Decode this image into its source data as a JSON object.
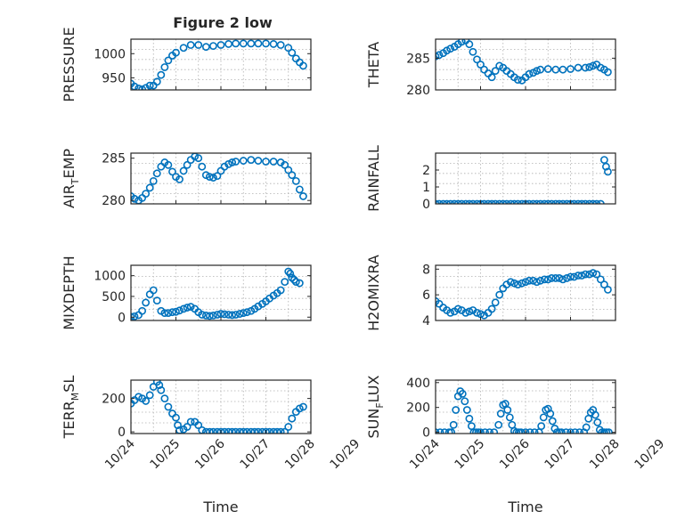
{
  "figure_title": "Figure 2 low",
  "colors": {
    "marker": "#0072bd",
    "axis": "#262626",
    "grid": "#b0b0b0"
  },
  "chart_data": [
    {
      "type": "scatter",
      "ylabel_main": "PRESSURE",
      "ylabel_sub": "",
      "ylabel_tail": "",
      "ylim": [
        925,
        1030
      ],
      "yticks": [
        950,
        1000
      ],
      "ytick_labels": [
        "950",
        "1000"
      ],
      "xlim": [
        0,
        4
      ],
      "show_xticks": false,
      "xlabel": "",
      "grid": true,
      "x": [
        0.0,
        0.08,
        0.17,
        0.25,
        0.33,
        0.42,
        0.5,
        0.58,
        0.67,
        0.75,
        0.83,
        0.92,
        1.0,
        1.17,
        1.33,
        1.5,
        1.67,
        1.83,
        2.0,
        2.17,
        2.33,
        2.5,
        2.67,
        2.83,
        3.0,
        3.17,
        3.33,
        3.5,
        3.58,
        3.67,
        3.75,
        3.83
      ],
      "y": [
        938,
        932,
        928,
        926,
        929,
        934,
        934,
        942,
        956,
        972,
        986,
        996,
        1002,
        1012,
        1018,
        1018,
        1014,
        1016,
        1018,
        1020,
        1021,
        1021,
        1021,
        1021,
        1021,
        1020,
        1018,
        1012,
        1002,
        990,
        982,
        975
      ]
    },
    {
      "type": "scatter",
      "ylabel_main": "THETA",
      "ylabel_sub": "",
      "ylabel_tail": "",
      "ylim": [
        280,
        288
      ],
      "yticks": [
        280,
        285
      ],
      "ytick_labels": [
        "280",
        "285"
      ],
      "xlim": [
        0,
        4
      ],
      "show_xticks": false,
      "xlabel": "",
      "grid": true,
      "x": [
        0.0,
        0.08,
        0.17,
        0.25,
        0.33,
        0.42,
        0.5,
        0.58,
        0.67,
        0.75,
        0.83,
        0.92,
        1.0,
        1.08,
        1.17,
        1.25,
        1.33,
        1.42,
        1.5,
        1.58,
        1.67,
        1.75,
        1.83,
        1.92,
        2.0,
        2.08,
        2.17,
        2.25,
        2.33,
        2.5,
        2.67,
        2.83,
        3.0,
        3.17,
        3.33,
        3.42,
        3.5,
        3.58,
        3.67,
        3.75,
        3.83
      ],
      "y": [
        285.3,
        285.5,
        285.8,
        286.2,
        286.5,
        286.8,
        287.2,
        287.6,
        287.8,
        287.2,
        286.0,
        284.8,
        284.0,
        283.2,
        282.6,
        282.0,
        283.0,
        283.8,
        283.5,
        283.0,
        282.5,
        282.0,
        281.6,
        281.5,
        282.0,
        282.5,
        282.7,
        283.0,
        283.2,
        283.3,
        283.2,
        283.2,
        283.3,
        283.5,
        283.5,
        283.6,
        283.8,
        284.0,
        283.5,
        283.2,
        282.8
      ]
    },
    {
      "type": "scatter",
      "ylabel_main": "AIR",
      "ylabel_sub": "T",
      "ylabel_tail": "EMP",
      "ylim": [
        279.6,
        285.6
      ],
      "yticks": [
        280,
        285
      ],
      "ytick_labels": [
        "280",
        "285"
      ],
      "xlim": [
        0,
        4
      ],
      "show_xticks": false,
      "xlabel": "",
      "grid": true,
      "x": [
        0.0,
        0.08,
        0.17,
        0.25,
        0.33,
        0.42,
        0.5,
        0.58,
        0.67,
        0.75,
        0.83,
        0.92,
        1.0,
        1.08,
        1.17,
        1.25,
        1.33,
        1.42,
        1.5,
        1.58,
        1.67,
        1.75,
        1.83,
        1.92,
        2.0,
        2.08,
        2.17,
        2.25,
        2.33,
        2.5,
        2.67,
        2.83,
        3.0,
        3.17,
        3.33,
        3.42,
        3.5,
        3.58,
        3.67,
        3.75,
        3.83
      ],
      "y": [
        280.5,
        280.2,
        280.0,
        280.3,
        280.8,
        281.5,
        282.3,
        283.2,
        284.0,
        284.5,
        284.2,
        283.4,
        282.8,
        282.5,
        283.5,
        284.2,
        284.8,
        285.2,
        285.0,
        284.0,
        283.0,
        282.8,
        282.7,
        282.9,
        283.5,
        284.0,
        284.3,
        284.5,
        284.6,
        284.7,
        284.8,
        284.7,
        284.6,
        284.6,
        284.5,
        284.2,
        283.6,
        283.0,
        282.3,
        281.3,
        280.5
      ]
    },
    {
      "type": "scatter",
      "ylabel_main": "RAINFALL",
      "ylabel_sub": "",
      "ylabel_tail": "",
      "ylim": [
        0,
        3
      ],
      "yticks": [
        0,
        1,
        2
      ],
      "ytick_labels": [
        "0",
        "1",
        "2"
      ],
      "xlim": [
        0,
        4
      ],
      "show_xticks": false,
      "xlabel": "",
      "grid": true,
      "x": [
        0.0,
        0.08,
        0.17,
        0.25,
        0.33,
        0.42,
        0.5,
        0.58,
        0.67,
        0.75,
        0.83,
        0.92,
        1.0,
        1.08,
        1.17,
        1.25,
        1.33,
        1.42,
        1.5,
        1.58,
        1.67,
        1.75,
        1.83,
        1.92,
        2.0,
        2.08,
        2.17,
        2.25,
        2.33,
        2.42,
        2.5,
        2.58,
        2.67,
        2.75,
        2.83,
        2.92,
        3.0,
        3.08,
        3.17,
        3.25,
        3.33,
        3.42,
        3.5,
        3.58,
        3.67,
        3.75,
        3.79,
        3.83
      ],
      "y": [
        0,
        0,
        0,
        0,
        0,
        0,
        0,
        0,
        0,
        0,
        0,
        0,
        0,
        0,
        0,
        0,
        0,
        0,
        0,
        0,
        0,
        0,
        0,
        0,
        0,
        0,
        0,
        0,
        0,
        0,
        0,
        0,
        0,
        0,
        0,
        0,
        0,
        0,
        0,
        0,
        0,
        0,
        0,
        0,
        0,
        2.6,
        2.2,
        1.9
      ]
    },
    {
      "type": "scatter",
      "ylabel_main": "MIXDEPTH",
      "ylabel_sub": "",
      "ylabel_tail": "",
      "ylim": [
        -80,
        1250
      ],
      "yticks": [
        0,
        500,
        1000
      ],
      "ytick_labels": [
        "0",
        "500",
        "1000"
      ],
      "xlim": [
        0,
        4
      ],
      "show_xticks": false,
      "xlabel": "",
      "grid": true,
      "x": [
        0.0,
        0.08,
        0.17,
        0.25,
        0.33,
        0.42,
        0.5,
        0.58,
        0.67,
        0.75,
        0.83,
        0.92,
        1.0,
        1.08,
        1.17,
        1.25,
        1.33,
        1.42,
        1.5,
        1.58,
        1.67,
        1.75,
        1.83,
        1.92,
        2.0,
        2.08,
        2.17,
        2.25,
        2.33,
        2.42,
        2.5,
        2.58,
        2.67,
        2.75,
        2.83,
        2.92,
        3.0,
        3.08,
        3.17,
        3.25,
        3.33,
        3.42,
        3.5,
        3.54,
        3.58,
        3.63,
        3.67,
        3.75
      ],
      "y": [
        10,
        20,
        50,
        150,
        350,
        550,
        650,
        400,
        150,
        100,
        100,
        120,
        130,
        160,
        200,
        230,
        250,
        200,
        120,
        60,
        40,
        30,
        40,
        60,
        80,
        70,
        60,
        50,
        60,
        80,
        100,
        120,
        150,
        200,
        260,
        320,
        380,
        450,
        520,
        580,
        650,
        850,
        1100,
        1050,
        950,
        900,
        850,
        820
      ]
    },
    {
      "type": "scatter",
      "ylabel_main": "H2OMIXRA",
      "ylabel_sub": "",
      "ylabel_tail": "",
      "ylim": [
        4,
        8.3
      ],
      "yticks": [
        4,
        6,
        8
      ],
      "ytick_labels": [
        "4",
        "6",
        "8"
      ],
      "xlim": [
        0,
        4
      ],
      "show_xticks": false,
      "xlabel": "",
      "grid": true,
      "x": [
        0.0,
        0.08,
        0.17,
        0.25,
        0.33,
        0.42,
        0.5,
        0.58,
        0.67,
        0.75,
        0.83,
        0.92,
        1.0,
        1.08,
        1.17,
        1.25,
        1.33,
        1.42,
        1.5,
        1.58,
        1.67,
        1.75,
        1.83,
        1.92,
        2.0,
        2.08,
        2.17,
        2.25,
        2.33,
        2.42,
        2.5,
        2.58,
        2.67,
        2.75,
        2.83,
        2.92,
        3.0,
        3.08,
        3.17,
        3.25,
        3.33,
        3.42,
        3.5,
        3.58,
        3.67,
        3.75,
        3.83
      ],
      "y": [
        5.5,
        5.3,
        5.0,
        4.8,
        4.6,
        4.7,
        4.9,
        4.8,
        4.6,
        4.7,
        4.8,
        4.6,
        4.5,
        4.4,
        4.6,
        4.9,
        5.4,
        6.0,
        6.5,
        6.8,
        7.0,
        6.9,
        6.8,
        6.9,
        7.0,
        7.1,
        7.1,
        7.0,
        7.1,
        7.2,
        7.2,
        7.3,
        7.3,
        7.3,
        7.2,
        7.3,
        7.4,
        7.4,
        7.5,
        7.5,
        7.6,
        7.6,
        7.7,
        7.6,
        7.2,
        6.8,
        6.4
      ]
    },
    {
      "type": "scatter",
      "ylabel_main": "TERR",
      "ylabel_sub": "M",
      "ylabel_tail": "SL",
      "ylim": [
        -10,
        310
      ],
      "yticks": [
        0,
        200
      ],
      "ytick_labels": [
        "0",
        "200"
      ],
      "xlim": [
        0,
        4
      ],
      "show_xticks": true,
      "xlabel": "Time",
      "grid": true,
      "xticks": [
        0,
        1,
        2,
        3,
        4,
        5
      ],
      "xtick_labels": [
        "10/24",
        "10/25",
        "10/26",
        "10/27",
        "10/28",
        "10/29"
      ],
      "x": [
        0.0,
        0.08,
        0.17,
        0.25,
        0.33,
        0.42,
        0.5,
        0.58,
        0.63,
        0.67,
        0.75,
        0.83,
        0.92,
        1.0,
        1.04,
        1.08,
        1.17,
        1.25,
        1.33,
        1.42,
        1.5,
        1.58,
        1.67,
        1.75,
        1.83,
        1.92,
        2.0,
        2.08,
        2.17,
        2.25,
        2.33,
        2.42,
        2.5,
        2.58,
        2.67,
        2.75,
        2.83,
        2.92,
        3.0,
        3.08,
        3.17,
        3.25,
        3.33,
        3.42,
        3.5,
        3.58,
        3.67,
        3.75,
        3.83
      ],
      "y": [
        170,
        190,
        210,
        200,
        185,
        220,
        270,
        300,
        280,
        250,
        200,
        150,
        110,
        85,
        40,
        10,
        15,
        30,
        60,
        60,
        40,
        10,
        0,
        0,
        0,
        0,
        0,
        0,
        0,
        0,
        0,
        0,
        0,
        0,
        0,
        0,
        0,
        0,
        0,
        0,
        0,
        0,
        0,
        0,
        30,
        80,
        120,
        140,
        150
      ]
    },
    {
      "type": "scatter",
      "ylabel_main": "SUN",
      "ylabel_sub": "F",
      "ylabel_tail": "LUX",
      "ylim": [
        -10,
        420
      ],
      "yticks": [
        0,
        200,
        400
      ],
      "ytick_labels": [
        "0",
        "200",
        "400"
      ],
      "xlim": [
        0,
        4
      ],
      "show_xticks": true,
      "xlabel": "Time",
      "grid": true,
      "xticks": [
        0,
        1,
        2,
        3,
        4,
        5
      ],
      "xtick_labels": [
        "10/24",
        "10/25",
        "10/26",
        "10/27",
        "10/28",
        "10/29"
      ],
      "x": [
        0.0,
        0.1,
        0.2,
        0.3,
        0.35,
        0.4,
        0.45,
        0.5,
        0.55,
        0.6,
        0.65,
        0.7,
        0.75,
        0.8,
        0.85,
        0.9,
        0.95,
        1.0,
        1.1,
        1.2,
        1.3,
        1.4,
        1.45,
        1.5,
        1.55,
        1.6,
        1.65,
        1.7,
        1.75,
        1.8,
        1.85,
        1.9,
        2.0,
        2.1,
        2.2,
        2.3,
        2.35,
        2.4,
        2.45,
        2.5,
        2.55,
        2.6,
        2.65,
        2.7,
        2.75,
        2.8,
        2.9,
        3.0,
        3.1,
        3.2,
        3.3,
        3.35,
        3.4,
        3.45,
        3.5,
        3.55,
        3.6,
        3.65,
        3.7,
        3.75,
        3.8,
        3.85
      ],
      "y": [
        0,
        0,
        0,
        0,
        0,
        60,
        180,
        290,
        330,
        310,
        250,
        180,
        110,
        50,
        0,
        0,
        0,
        0,
        0,
        0,
        0,
        60,
        150,
        220,
        230,
        180,
        120,
        60,
        10,
        0,
        0,
        0,
        0,
        0,
        0,
        0,
        50,
        120,
        180,
        190,
        150,
        90,
        30,
        0,
        0,
        0,
        0,
        0,
        0,
        0,
        0,
        40,
        110,
        160,
        180,
        140,
        80,
        20,
        0,
        0,
        0,
        0
      ]
    }
  ]
}
